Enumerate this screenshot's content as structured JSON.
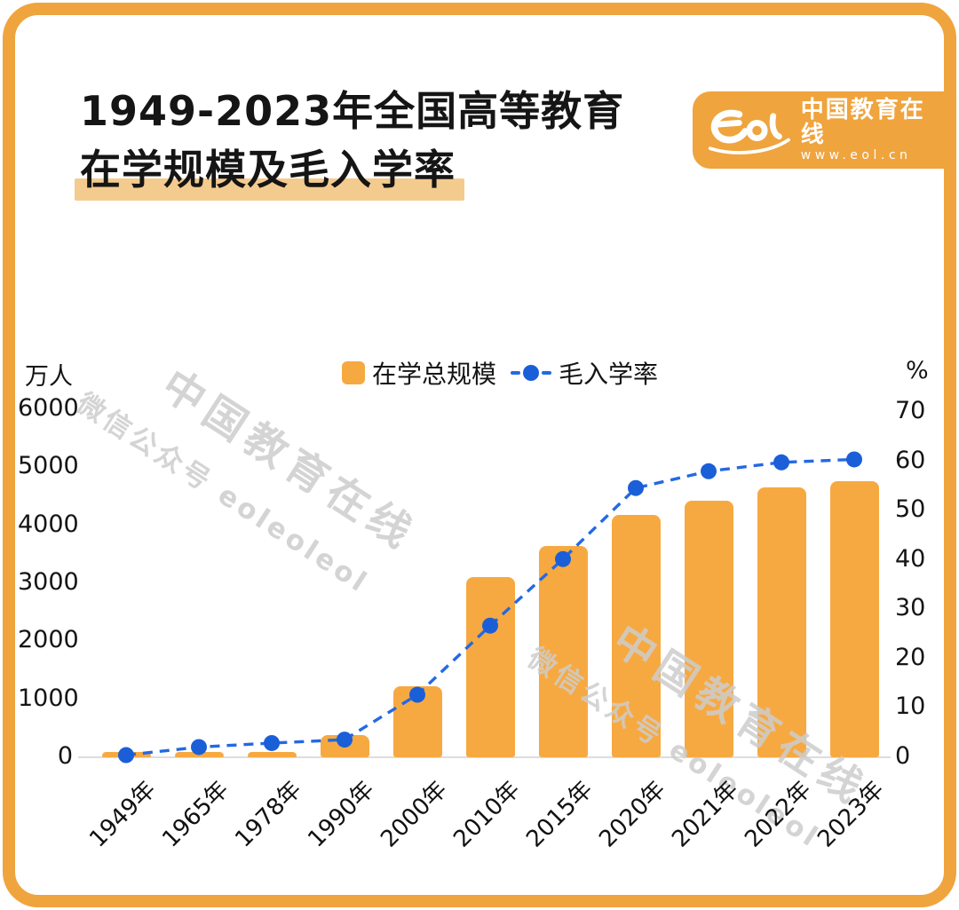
{
  "page": {
    "title_line1": "1949-2023年全国高等教育",
    "title_line2": "在学规模及毛入学率"
  },
  "logo": {
    "brand": "中国教育在线",
    "url_text": "www.eol.cn"
  },
  "legend": [
    {
      "label": "在学总规模",
      "marker": "square",
      "color": "#F7A941"
    },
    {
      "label": "毛入学率",
      "marker": "dot-dash",
      "color": "#1A5FD8"
    }
  ],
  "watermark": {
    "line1": "中国教育在线",
    "line2": "微信公众号 eoleoleol"
  },
  "colors": {
    "frame_orange": "#EFA43E",
    "bar_orange": "#F7A941",
    "line_blue": "#2469E3",
    "dot_blue": "#1A5FD8",
    "title_highlight": "#F4CB8E",
    "watermark_gray": "#CDCDCD"
  },
  "chart_data": {
    "type": "combo-bar-line",
    "title": "1949-2023年全国高等教育在学规模及毛入学率",
    "categories": [
      "1949年",
      "1965年",
      "1978年",
      "1990年",
      "2000年",
      "2010年",
      "2015年",
      "2020年",
      "2021年",
      "2022年",
      "2023年"
    ],
    "series": [
      {
        "name": "在学总规模",
        "type": "bar",
        "axis": "left",
        "unit": "万人",
        "values": [
          11.7,
          67.4,
          86.7,
          382,
          1230,
          3105,
          3647,
          4183,
          4430,
          4655,
          4763
        ]
      },
      {
        "name": "毛入学率",
        "type": "line",
        "axis": "right",
        "unit": "%",
        "values": [
          0.26,
          1.9,
          2.7,
          3.4,
          12.5,
          26.5,
          40,
          54.4,
          57.8,
          59.6,
          60.2
        ]
      }
    ],
    "left_axis": {
      "label": "万人",
      "min": 0,
      "max": 6000,
      "step": 1000,
      "ticks": [
        6000,
        5000,
        4000,
        3000,
        2000,
        1000,
        0
      ]
    },
    "right_axis": {
      "label": "%",
      "min": 0,
      "max": 70,
      "step": 10,
      "ticks": [
        70,
        60,
        50,
        40,
        30,
        20,
        10,
        0
      ]
    },
    "grid": false,
    "legend_position": "top-center"
  }
}
